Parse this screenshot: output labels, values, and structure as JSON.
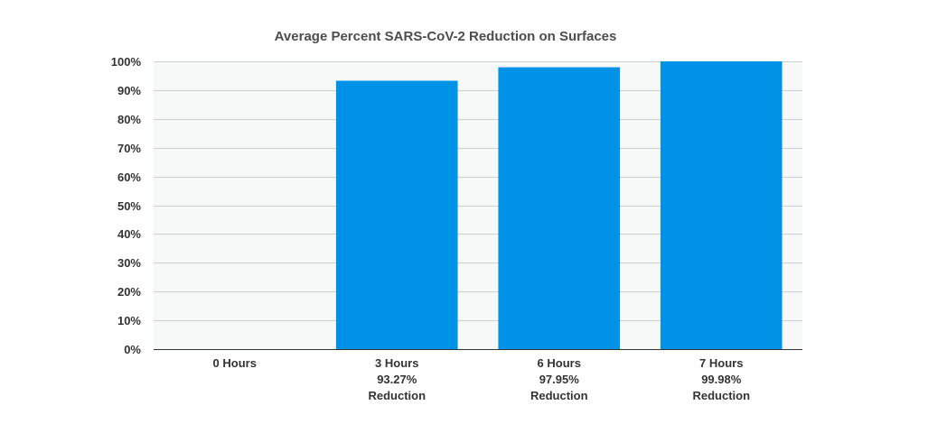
{
  "chart_data": {
    "type": "bar",
    "title": "Average Percent SARS-CoV-2 Reduction on Surfaces",
    "xlabel": "",
    "ylabel": "",
    "categories": [
      "0 Hours",
      "3 Hours",
      "6 Hours",
      "7 Hours"
    ],
    "category_labels": [
      [
        "0 Hours"
      ],
      [
        "3 Hours",
        "93.27%",
        "Reduction"
      ],
      [
        "6 Hours",
        "97.95%",
        "Reduction"
      ],
      [
        "7 Hours",
        "99.98%",
        "Reduction"
      ]
    ],
    "values": [
      0,
      93.27,
      97.95,
      99.98
    ],
    "ylim": [
      0,
      100
    ],
    "yticks": [
      0,
      10,
      20,
      30,
      40,
      50,
      60,
      70,
      80,
      90,
      100
    ],
    "ytick_labels": [
      "0%",
      "10%",
      "20%",
      "30%",
      "40%",
      "50%",
      "60%",
      "70%",
      "80%",
      "90%",
      "100%"
    ],
    "grid": true,
    "legend": "none",
    "bar_color": "#0092e6",
    "plot_background": "#f7f8f8"
  }
}
